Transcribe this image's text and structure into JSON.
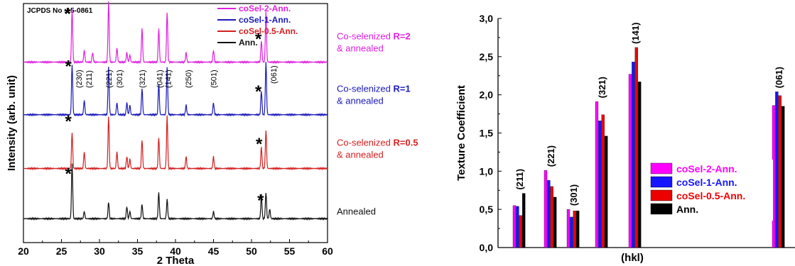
{
  "chart_data": [
    {
      "type": "line",
      "reference": "JCPDS No :15-0861",
      "xlabel": "2 Theta",
      "ylabel": "Intensity (arb. unit)",
      "xlim": [
        20,
        60
      ],
      "xticks": [
        20,
        25,
        30,
        35,
        40,
        45,
        50,
        55,
        60
      ],
      "legend": {
        "placement": "top-right",
        "entries": [
          {
            "name": "coSel-2-Ann.",
            "color": "#e020e0"
          },
          {
            "name": "coSel-1-Ann.",
            "color": "#1a1aba"
          },
          {
            "name": "coSel-0.5-Ann.",
            "color": "#d42020"
          },
          {
            "name": "Ann.",
            "color": "#111111"
          }
        ]
      },
      "series": [
        {
          "key": "coSel-2-Ann.",
          "color": "#e020e0",
          "label_line1": "Co-selenized ",
          "label_bold": "R=2",
          "label_line2": "& annealed",
          "baseline": 0.755,
          "peaks": [
            [
              26.4,
              0.22
            ],
            [
              28.0,
              0.05
            ],
            [
              29.1,
              0.04
            ],
            [
              31.2,
              0.25
            ],
            [
              32.3,
              0.06
            ],
            [
              33.6,
              0.04
            ],
            [
              34.0,
              0.03
            ],
            [
              35.6,
              0.14
            ],
            [
              37.8,
              0.14
            ],
            [
              38.9,
              0.21
            ],
            [
              41.4,
              0.04
            ],
            [
              45.0,
              0.05
            ],
            [
              51.3,
              0.09
            ],
            [
              51.9,
              0.21
            ]
          ]
        },
        {
          "key": "coSel-1-Ann.",
          "color": "#1a1aba",
          "label_line1": "Co-selenized ",
          "label_bold": "R=1",
          "label_line2": "& annealed",
          "baseline": 0.535,
          "peaks": [
            [
              26.4,
              0.21
            ],
            [
              28.0,
              0.06
            ],
            [
              31.2,
              0.2
            ],
            [
              32.3,
              0.05
            ],
            [
              33.6,
              0.05
            ],
            [
              34.0,
              0.04
            ],
            [
              35.6,
              0.11
            ],
            [
              37.8,
              0.13
            ],
            [
              38.9,
              0.2
            ],
            [
              41.4,
              0.04
            ],
            [
              45.0,
              0.05
            ],
            [
              51.3,
              0.1
            ],
            [
              51.9,
              0.22
            ]
          ]
        },
        {
          "key": "coSel-0.5-Ann.",
          "color": "#d42020",
          "label_line1": "Co-selenized ",
          "label_bold": "R=0.5",
          "label_line2": "& annealed",
          "baseline": 0.31,
          "peaks": [
            [
              26.4,
              0.15
            ],
            [
              28.0,
              0.07
            ],
            [
              31.2,
              0.22
            ],
            [
              32.3,
              0.07
            ],
            [
              33.6,
              0.05
            ],
            [
              34.0,
              0.04
            ],
            [
              35.6,
              0.12
            ],
            [
              37.8,
              0.13
            ],
            [
              38.9,
              0.22
            ],
            [
              41.4,
              0.05
            ],
            [
              45.0,
              0.05
            ],
            [
              51.3,
              0.09
            ],
            [
              51.9,
              0.16
            ]
          ]
        },
        {
          "key": "Ann.",
          "color": "#111111",
          "label_line1": "Annealed",
          "label_bold": "",
          "label_line2": "",
          "baseline": 0.1,
          "peaks": [
            [
              26.4,
              0.23
            ],
            [
              28.0,
              0.03
            ],
            [
              31.2,
              0.07
            ],
            [
              33.6,
              0.05
            ],
            [
              34.0,
              0.03
            ],
            [
              35.6,
              0.06
            ],
            [
              37.8,
              0.11
            ],
            [
              38.9,
              0.08
            ],
            [
              45.0,
              0.03
            ],
            [
              51.3,
              0.1
            ],
            [
              51.9,
              0.11
            ],
            [
              52.4,
              0.04
            ]
          ]
        }
      ],
      "hkl_labels": [
        {
          "text": "(230)",
          "x": 27.3
        },
        {
          "text": "(211)",
          "x": 28.6
        },
        {
          "text": "(221)",
          "x": 31.2
        },
        {
          "text": "(301)",
          "x": 32.6
        },
        {
          "text": "(321)",
          "x": 35.6
        },
        {
          "text": "(041)",
          "x": 37.9
        },
        {
          "text": "(141)",
          "x": 39.0
        },
        {
          "text": "(250)",
          "x": 41.7
        },
        {
          "text": "(501)",
          "x": 45.0
        },
        {
          "text": "(061)",
          "x": 52.9
        }
      ],
      "stars": [
        {
          "x": 25.8,
          "y": 0.975
        },
        {
          "x": 50.9,
          "y": 0.87
        },
        {
          "x": 25.9,
          "y": 0.755
        },
        {
          "x": 50.9,
          "y": 0.65
        },
        {
          "x": 25.9,
          "y": 0.525
        },
        {
          "x": 51.0,
          "y": 0.43
        },
        {
          "x": 25.9,
          "y": 0.305
        },
        {
          "x": 51.2,
          "y": 0.195
        }
      ],
      "star_symbol": "*"
    },
    {
      "type": "bar",
      "xlabel": "(hkl)",
      "ylabel": "Texture Coefficient",
      "ylim": [
        0,
        3.0
      ],
      "yticks": [
        "0,0",
        "0,5",
        "1,0",
        "1,5",
        "2,0",
        "2,5",
        "3,0"
      ],
      "categories": [
        "(211)",
        "(221)",
        "(301)",
        "(321)",
        "(141)",
        "(061)"
      ],
      "legend": {
        "placement": "center-right"
      },
      "series": [
        {
          "name": "coSel-2-Ann.",
          "color": "#ff00ff",
          "values": [
            0.55,
            1.01,
            0.5,
            1.91,
            2.27,
            1.86
          ]
        },
        {
          "name": "coSel-1-Ann.",
          "color": "#1515ff",
          "values": [
            0.54,
            0.88,
            0.4,
            1.66,
            2.43,
            2.04
          ]
        },
        {
          "name": "coSel-0.5-Ann.",
          "color": "#ee0000",
          "values": [
            0.42,
            0.8,
            0.48,
            1.74,
            2.62,
            1.99
          ]
        },
        {
          "name": "Ann.",
          "color": "#000000",
          "values": [
            0.71,
            0.66,
            0.48,
            1.46,
            2.17,
            1.85
          ]
        }
      ]
    }
  ]
}
